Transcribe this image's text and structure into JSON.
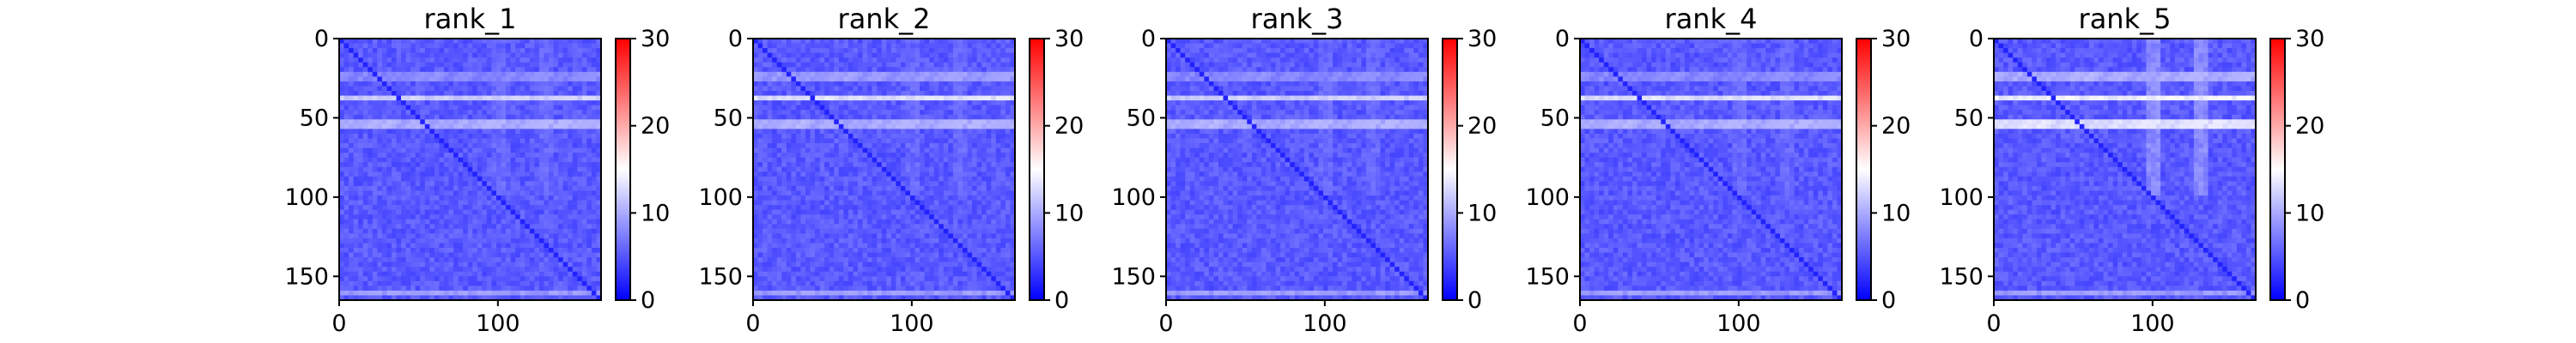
{
  "chart_data": [
    {
      "type": "heatmap",
      "title": "rank_1",
      "size": 165,
      "x_ticks": [
        0,
        100
      ],
      "y_ticks": [
        0,
        50,
        100,
        150
      ],
      "color_range": [
        0,
        30
      ],
      "colorbar_ticks": [
        0,
        10,
        20,
        30
      ],
      "colormap": [
        "#0000ff",
        "#ffffff",
        "#ff0000"
      ],
      "bright_rows": [
        [
          22,
          27,
          9
        ],
        [
          36,
          40,
          13
        ],
        [
          52,
          56,
          11
        ],
        [
          158,
          162,
          10
        ]
      ],
      "bright_cols": [
        [
          95,
          105,
          7
        ],
        [
          125,
          135,
          7
        ]
      ],
      "base_value": 4,
      "diagonal_value": 2
    },
    {
      "type": "heatmap",
      "title": "rank_2",
      "size": 165,
      "x_ticks": [
        0,
        100
      ],
      "y_ticks": [
        0,
        50,
        100,
        150
      ],
      "color_range": [
        0,
        30
      ],
      "colorbar_ticks": [
        0,
        10,
        20,
        30
      ],
      "colormap": [
        "#0000ff",
        "#ffffff",
        "#ff0000"
      ],
      "bright_rows": [
        [
          22,
          27,
          10
        ],
        [
          36,
          40,
          14
        ],
        [
          52,
          56,
          11
        ],
        [
          158,
          162,
          10
        ]
      ],
      "bright_cols": [
        [
          95,
          105,
          7
        ],
        [
          125,
          135,
          7
        ]
      ],
      "base_value": 4,
      "diagonal_value": 2
    },
    {
      "type": "heatmap",
      "title": "rank_3",
      "size": 165,
      "x_ticks": [
        0,
        100
      ],
      "y_ticks": [
        0,
        50,
        100,
        150
      ],
      "color_range": [
        0,
        30
      ],
      "colorbar_ticks": [
        0,
        10,
        20,
        30
      ],
      "colormap": [
        "#0000ff",
        "#ffffff",
        "#ff0000"
      ],
      "bright_rows": [
        [
          22,
          27,
          9
        ],
        [
          36,
          40,
          13
        ],
        [
          52,
          56,
          11
        ],
        [
          158,
          162,
          10
        ]
      ],
      "bright_cols": [
        [
          95,
          105,
          7
        ],
        [
          125,
          135,
          7
        ]
      ],
      "base_value": 4,
      "diagonal_value": 2
    },
    {
      "type": "heatmap",
      "title": "rank_4",
      "size": 165,
      "x_ticks": [
        0,
        100
      ],
      "y_ticks": [
        0,
        50,
        100,
        150
      ],
      "color_range": [
        0,
        30
      ],
      "colorbar_ticks": [
        0,
        10,
        20,
        30
      ],
      "colormap": [
        "#0000ff",
        "#ffffff",
        "#ff0000"
      ],
      "bright_rows": [
        [
          22,
          27,
          9
        ],
        [
          36,
          40,
          14
        ],
        [
          52,
          56,
          11
        ],
        [
          158,
          162,
          10
        ]
      ],
      "bright_cols": [
        [
          95,
          105,
          7
        ],
        [
          125,
          135,
          7
        ]
      ],
      "base_value": 4,
      "diagonal_value": 2
    },
    {
      "type": "heatmap",
      "title": "rank_5",
      "size": 165,
      "x_ticks": [
        0,
        100
      ],
      "y_ticks": [
        0,
        50,
        100,
        150
      ],
      "color_range": [
        0,
        30
      ],
      "colorbar_ticks": [
        0,
        10,
        20,
        30
      ],
      "colormap": [
        "#0000ff",
        "#ffffff",
        "#ff0000"
      ],
      "bright_rows": [
        [
          22,
          27,
          11
        ],
        [
          36,
          40,
          15
        ],
        [
          52,
          56,
          14
        ],
        [
          158,
          162,
          10
        ]
      ],
      "bright_cols": [
        [
          95,
          105,
          9
        ],
        [
          125,
          135,
          9
        ]
      ],
      "base_value": 4,
      "diagonal_value": 2
    }
  ]
}
